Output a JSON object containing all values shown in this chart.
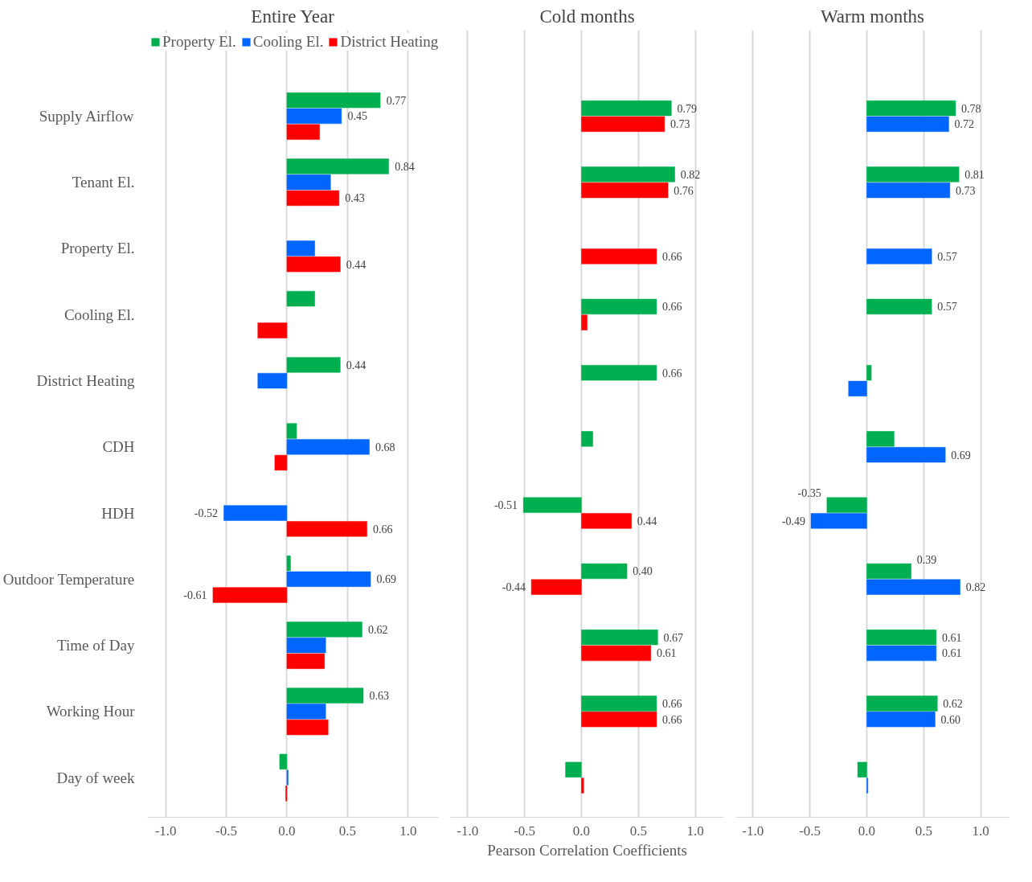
{
  "chart_data": [
    {
      "type": "bar",
      "orientation": "horizontal",
      "title": "Entire Year",
      "legend": "top left",
      "grid": "x",
      "categories": [
        "Supply Airflow",
        "Tenant El.",
        "Property El.",
        "Cooling El.",
        "District Heating",
        "CDH",
        "HDH",
        "Outdoor Temperature",
        "Time of Day",
        "Working Hour",
        "Day of week"
      ],
      "xlim": [
        -1.15,
        1.25
      ],
      "xticks": [
        {
          "value": -1,
          "label": "-1.0"
        },
        {
          "value": -0.5,
          "label": "-0.5"
        },
        {
          "value": 0,
          "label": "0.0"
        },
        {
          "value": 0.5,
          "label": "0.5"
        },
        {
          "value": 1,
          "label": "1.0"
        }
      ],
      "series": [
        {
          "name": "Property El.",
          "color": "#00b050",
          "values": [
            0.77,
            0.84,
            null,
            0.23,
            0.44,
            0.08,
            null,
            0.03,
            0.62,
            0.63,
            -0.06
          ],
          "value_labels": [
            "0.77",
            "0.84",
            null,
            null,
            "0.44",
            null,
            null,
            null,
            "0.62",
            "0.63",
            null
          ]
        },
        {
          "name": "Cooling El.",
          "color": "#0066ff",
          "values": [
            0.45,
            0.36,
            0.23,
            null,
            -0.24,
            0.68,
            -0.52,
            0.69,
            0.32,
            0.32,
            0.01
          ],
          "value_labels": [
            "0.45",
            null,
            null,
            null,
            null,
            "0.68",
            "-0.52",
            "0.69",
            null,
            null,
            null
          ]
        },
        {
          "name": "District Heating",
          "color": "#ff0000",
          "values": [
            0.27,
            0.43,
            0.44,
            -0.24,
            null,
            -0.1,
            0.66,
            -0.61,
            0.31,
            0.34,
            -0.01
          ],
          "value_labels": [
            null,
            "0.43",
            "0.44",
            null,
            null,
            null,
            "0.66",
            "-0.61",
            null,
            null,
            null
          ]
        }
      ]
    },
    {
      "type": "bar",
      "orientation": "horizontal",
      "title": "Cold months",
      "xlabel": "Pearson Correlation Coefficients",
      "grid": "x",
      "tick_labels": "x",
      "categories": [
        null,
        null,
        null,
        null,
        null,
        null,
        null,
        null,
        null,
        null,
        null
      ],
      "xlim": [
        -1.15,
        1.25
      ],
      "xticks": [
        {
          "value": -1,
          "label": "-1.0"
        },
        {
          "value": -0.5,
          "label": "-0.5"
        },
        {
          "value": 0,
          "label": "0.0"
        },
        {
          "value": 0.5,
          "label": "0.5"
        },
        {
          "value": 1,
          "label": "1.0"
        }
      ],
      "series": [
        {
          "color": "#00b050",
          "values": [
            0.79,
            0.82,
            null,
            0.66,
            0.66,
            0.1,
            -0.51,
            0.4,
            0.67,
            0.66,
            -0.14
          ],
          "value_labels": [
            "0.79",
            "0.82",
            null,
            "0.66",
            "0.66",
            null,
            "-0.51",
            "0.40",
            "0.67",
            "0.66",
            null
          ]
        },
        {
          "color": "#ff0000",
          "values": [
            0.73,
            0.76,
            0.66,
            0.05,
            null,
            null,
            0.44,
            -0.44,
            0.61,
            0.66,
            0.02
          ],
          "value_labels": [
            "0.73",
            "0.76",
            "0.66",
            null,
            null,
            null,
            "0.44",
            "-0.44",
            "0.61",
            "0.66",
            null
          ]
        }
      ]
    },
    {
      "type": "bar",
      "orientation": "horizontal",
      "title": "Warm months",
      "grid": "x",
      "tick_labels": "x",
      "categories": [
        null,
        null,
        null,
        null,
        null,
        null,
        null,
        null,
        null,
        null,
        null
      ],
      "xlim": [
        -1.15,
        1.25
      ],
      "xticks": [
        {
          "value": -1,
          "label": "-1.0"
        },
        {
          "value": -0.5,
          "label": "-0.5"
        },
        {
          "value": 0,
          "label": "0.0"
        },
        {
          "value": 0.5,
          "label": "0.5"
        },
        {
          "value": 1,
          "label": "1.0"
        }
      ],
      "series": [
        {
          "color": "#00b050",
          "values": [
            0.78,
            0.81,
            null,
            0.57,
            0.04,
            0.24,
            -0.35,
            0.39,
            0.61,
            0.62,
            -0.08
          ],
          "value_labels": [
            "0.78",
            "0.81",
            null,
            "0.57",
            null,
            null,
            "-0.35",
            "0.39",
            "0.61",
            "0.62",
            null
          ]
        },
        {
          "color": "#0066ff",
          "values": [
            0.72,
            0.73,
            0.57,
            null,
            -0.16,
            0.69,
            -0.49,
            0.82,
            0.61,
            0.6,
            0.01
          ],
          "value_labels": [
            "0.72",
            "0.73",
            "0.57",
            null,
            null,
            "0.69",
            "-0.49",
            "0.82",
            "0.61",
            "0.60",
            null
          ]
        }
      ]
    }
  ]
}
